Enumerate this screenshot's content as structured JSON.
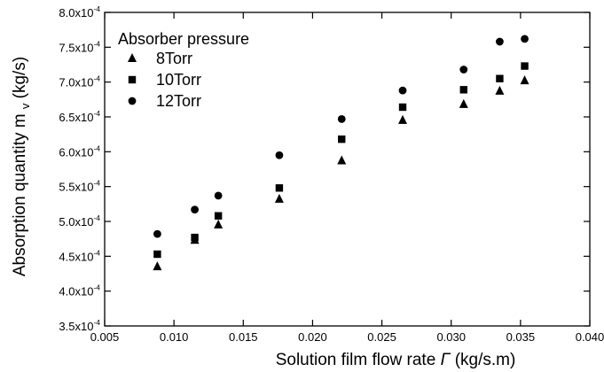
{
  "chart_data": {
    "type": "scatter",
    "title": "",
    "xlabel": "Solution film flow rate",
    "xlabel_symbol": "Γ",
    "xlabel_unit": "(kg/s.m)",
    "ylabel": "Absorption quantity m",
    "ylabel_subscript": "v",
    "ylabel_unit": "(kg/s)",
    "xlim": [
      0.005,
      0.04
    ],
    "ylim": [
      0.00035,
      0.0008
    ],
    "x_ticks": [
      {
        "value": 0.005,
        "label": "0.005"
      },
      {
        "value": 0.01,
        "label": "0.010"
      },
      {
        "value": 0.015,
        "label": "0.015"
      },
      {
        "value": 0.02,
        "label": "0.020"
      },
      {
        "value": 0.025,
        "label": "0.025"
      },
      {
        "value": 0.03,
        "label": "0.030"
      },
      {
        "value": 0.035,
        "label": "0.035"
      },
      {
        "value": 0.04,
        "label": "0.040"
      }
    ],
    "y_ticks": [
      {
        "value": 0.00035,
        "mantissa": "3.5x10",
        "exp": "-4"
      },
      {
        "value": 0.0004,
        "mantissa": "4.0x10",
        "exp": "-4"
      },
      {
        "value": 0.00045,
        "mantissa": "4.5x10",
        "exp": "-4"
      },
      {
        "value": 0.0005,
        "mantissa": "5.0x10",
        "exp": "-4"
      },
      {
        "value": 0.00055,
        "mantissa": "5.5x10",
        "exp": "-4"
      },
      {
        "value": 0.0006,
        "mantissa": "6.0x10",
        "exp": "-4"
      },
      {
        "value": 0.00065,
        "mantissa": "6.5x10",
        "exp": "-4"
      },
      {
        "value": 0.0007,
        "mantissa": "7.0x10",
        "exp": "-4"
      },
      {
        "value": 0.00075,
        "mantissa": "7.5x10",
        "exp": "-4"
      },
      {
        "value": 0.0008,
        "mantissa": "8.0x10",
        "exp": "-4"
      }
    ],
    "grid": false,
    "legend_title": "Absorber pressure",
    "legend_position": "top-left",
    "series": [
      {
        "name": "8Torr",
        "marker": "triangle",
        "color": "#000000",
        "points": [
          {
            "x": 0.0088,
            "y": 0.000435
          },
          {
            "x": 0.0115,
            "y": 0.000473
          },
          {
            "x": 0.0132,
            "y": 0.000495
          },
          {
            "x": 0.0176,
            "y": 0.000532
          },
          {
            "x": 0.0221,
            "y": 0.000587
          },
          {
            "x": 0.0265,
            "y": 0.000645
          },
          {
            "x": 0.0309,
            "y": 0.000668
          },
          {
            "x": 0.0335,
            "y": 0.000687
          },
          {
            "x": 0.0353,
            "y": 0.000702
          }
        ]
      },
      {
        "name": "10Torr",
        "marker": "square",
        "color": "#000000",
        "points": [
          {
            "x": 0.0088,
            "y": 0.000453
          },
          {
            "x": 0.0115,
            "y": 0.000477
          },
          {
            "x": 0.0132,
            "y": 0.000508
          },
          {
            "x": 0.0176,
            "y": 0.000548
          },
          {
            "x": 0.0221,
            "y": 0.000618
          },
          {
            "x": 0.0265,
            "y": 0.000664
          },
          {
            "x": 0.0309,
            "y": 0.000689
          },
          {
            "x": 0.0335,
            "y": 0.000705
          },
          {
            "x": 0.0353,
            "y": 0.000723
          }
        ]
      },
      {
        "name": "12Torr",
        "marker": "circle",
        "color": "#000000",
        "points": [
          {
            "x": 0.0088,
            "y": 0.000482
          },
          {
            "x": 0.0115,
            "y": 0.000517
          },
          {
            "x": 0.0132,
            "y": 0.000537
          },
          {
            "x": 0.0176,
            "y": 0.000595
          },
          {
            "x": 0.0221,
            "y": 0.000647
          },
          {
            "x": 0.0265,
            "y": 0.000688
          },
          {
            "x": 0.0309,
            "y": 0.000718
          },
          {
            "x": 0.0335,
            "y": 0.000758
          },
          {
            "x": 0.0353,
            "y": 0.000762
          }
        ]
      }
    ]
  }
}
